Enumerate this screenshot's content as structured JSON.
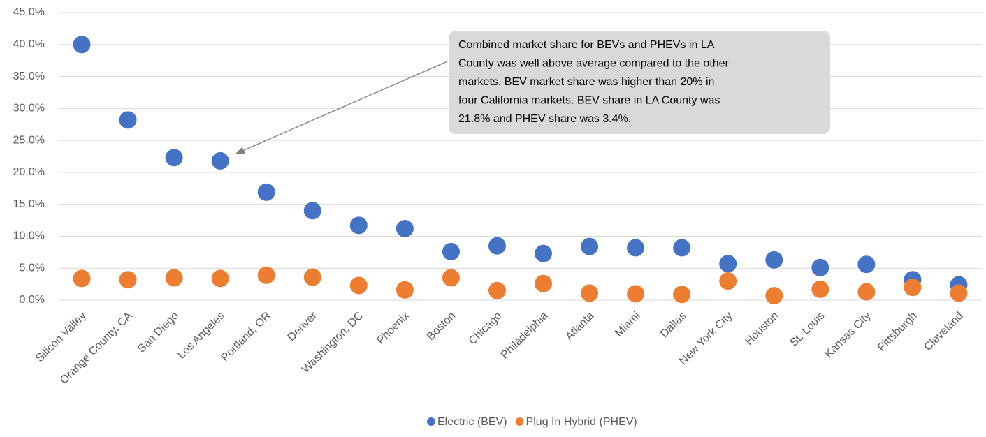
{
  "chart_data": {
    "type": "scatter",
    "categories": [
      "Silicon Valley",
      "Orange County, CA",
      "San Diego",
      "Los Angeles",
      "Portland, OR",
      "Denver",
      "Washington, DC",
      "Phoenix",
      "Boston",
      "Chicago",
      "Philadelphia",
      "Atlanta",
      "Miami",
      "Dallas",
      "New York City",
      "Houston",
      "St. Louis",
      "Kansas City",
      "Pittsburgh",
      "Cleveland"
    ],
    "series": [
      {
        "name": "Electric (BEV)",
        "color": "#4472c4",
        "values": [
          40.0,
          28.2,
          22.3,
          21.8,
          16.9,
          14.0,
          11.7,
          11.2,
          7.6,
          8.5,
          7.3,
          8.4,
          8.2,
          8.2,
          5.7,
          6.3,
          5.1,
          5.6,
          3.2,
          2.4
        ]
      },
      {
        "name": "Plug In Hybrid (PHEV)",
        "color": "#ed7d31",
        "values": [
          3.4,
          3.2,
          3.5,
          3.4,
          3.9,
          3.6,
          2.3,
          1.6,
          3.5,
          1.5,
          2.6,
          1.1,
          1.0,
          0.9,
          3.0,
          0.7,
          1.7,
          1.3,
          2.0,
          1.1
        ]
      }
    ],
    "ylim": [
      0,
      45
    ],
    "yticks": [
      {
        "value": 0,
        "label": "0.0%"
      },
      {
        "value": 5,
        "label": "5.0%"
      },
      {
        "value": 10,
        "label": "10.0%"
      },
      {
        "value": 15,
        "label": "15.0%"
      },
      {
        "value": 20,
        "label": "20.0%"
      },
      {
        "value": 25,
        "label": "25.0%"
      },
      {
        "value": 30,
        "label": "30.0%"
      },
      {
        "value": 35,
        "label": "35.0%"
      },
      {
        "value": 40,
        "label": "40.0%"
      },
      {
        "value": 45,
        "label": "45.0%"
      }
    ],
    "grid": true,
    "legend": "bottom",
    "annotation": [
      "Combined market share for BEVs and PHEVs in LA",
      "County was well above average compared to the other",
      "markets. BEV market share was higher than 20% in",
      "four California markets. BEV share in LA County was",
      "21.8% and PHEV share was 3.4%."
    ]
  }
}
